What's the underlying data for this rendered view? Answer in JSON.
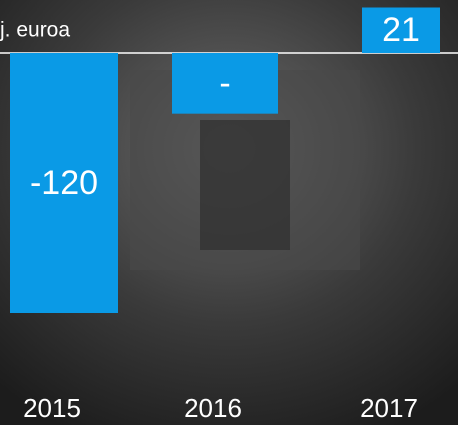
{
  "chart_data": {
    "type": "bar",
    "subtitle": "j. euroa",
    "categories": [
      "2015",
      "2016",
      "2017"
    ],
    "values": [
      -120,
      -28,
      21
    ],
    "value_labels": [
      "-120",
      "-",
      "21"
    ],
    "color": "#0a9ae6"
  }
}
